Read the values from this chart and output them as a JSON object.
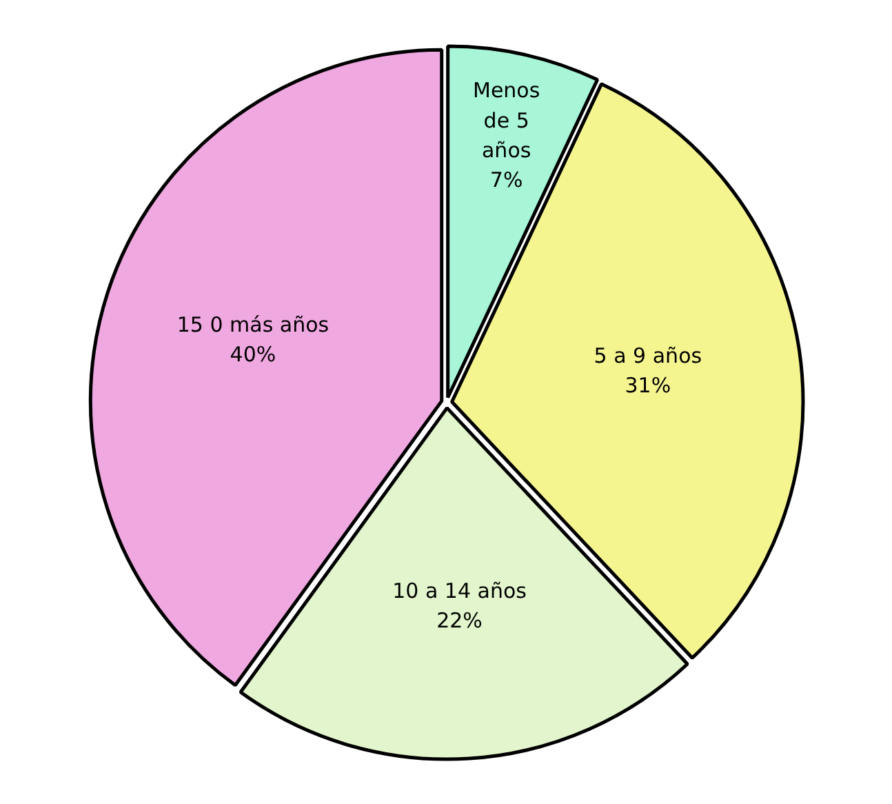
{
  "chart_data": {
    "type": "pie",
    "categories": [
      "Menos de 5 años",
      "5 a 9 años",
      "10 a 14 años",
      "15 0 más años"
    ],
    "values": [
      7,
      31,
      22,
      40
    ],
    "colors": [
      "#a8f5d8",
      "#f5f590",
      "#e2f5cc",
      "#f0a8e0"
    ],
    "value_labels": [
      "7%",
      "31%",
      "22%",
      "40%"
    ]
  }
}
